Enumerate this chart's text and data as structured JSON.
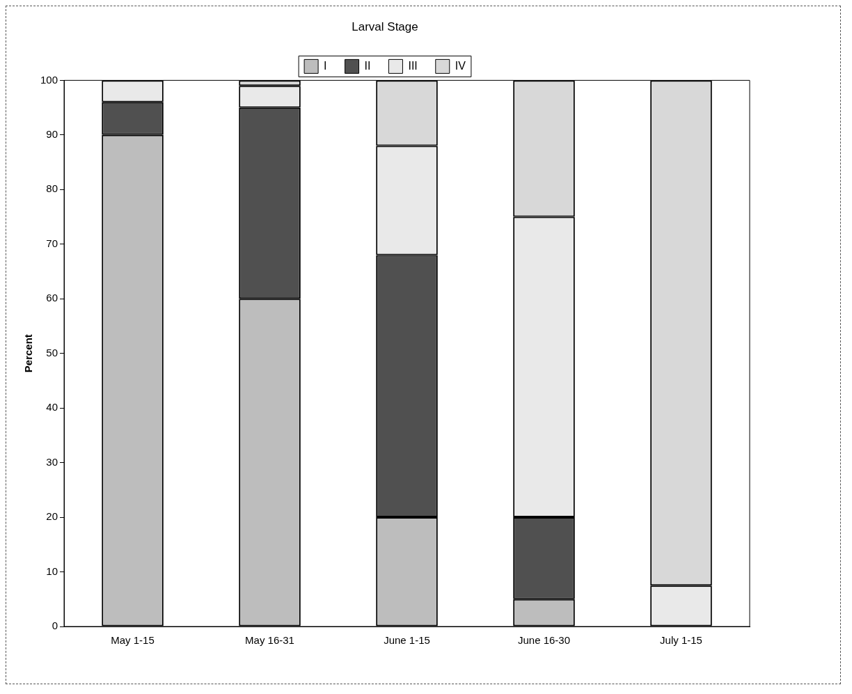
{
  "chart_data": {
    "type": "bar",
    "title": "Larval Stage",
    "ylabel": "Percent",
    "stacked": true,
    "legend": "top",
    "grid": false,
    "categories": [
      "May 1-15",
      "May 16-31",
      "June 1-15",
      "June 16-30",
      "July 1-15"
    ],
    "series": [
      {
        "name": "I",
        "color": "#bdbdbd",
        "values": [
          90,
          60,
          20,
          5,
          0
        ]
      },
      {
        "name": "II",
        "color": "#505050",
        "values": [
          6,
          35,
          48,
          15,
          0
        ]
      },
      {
        "name": "III",
        "color": "#e9e9e9",
        "values": [
          4,
          4,
          20,
          55,
          7.5
        ]
      },
      {
        "name": "IV",
        "color": "#d8d8d8",
        "values": [
          0,
          1,
          12,
          25,
          92.5
        ]
      }
    ],
    "ylim": [
      0,
      100
    ],
    "yticks": [
      0,
      10,
      20,
      30,
      40,
      50,
      60,
      70,
      80,
      90,
      100
    ]
  }
}
